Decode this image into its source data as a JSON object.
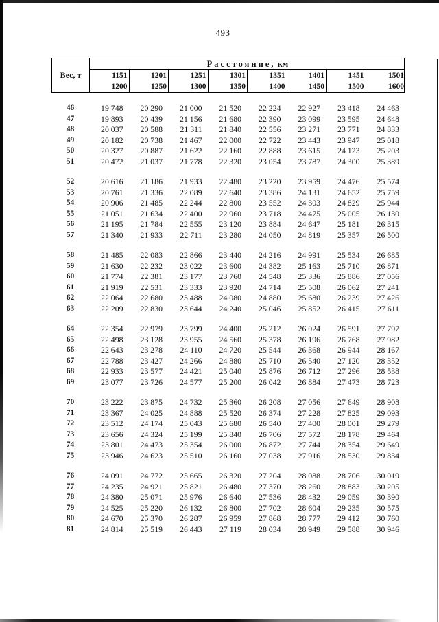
{
  "page_number": "493",
  "table": {
    "distance_title": "Расстояние,",
    "distance_unit": "км",
    "weight_header": "Вес, т",
    "columns": [
      {
        "from": "1151",
        "to": "1200"
      },
      {
        "from": "1201",
        "to": "1250"
      },
      {
        "from": "1251",
        "to": "1300"
      },
      {
        "from": "1301",
        "to": "1350"
      },
      {
        "from": "1351",
        "to": "1400"
      },
      {
        "from": "1401",
        "to": "1450"
      },
      {
        "from": "1451",
        "to": "1500"
      },
      {
        "from": "1501",
        "to": "1600"
      }
    ],
    "groups": [
      [
        {
          "weight": "46",
          "values": [
            "19 748",
            "20 290",
            "21 000",
            "21 520",
            "22 224",
            "22 927",
            "23 418",
            "24 463"
          ]
        },
        {
          "weight": "47",
          "values": [
            "19 893",
            "20 439",
            "21 156",
            "21 680",
            "22 390",
            "23 099",
            "23 595",
            "24 648"
          ]
        },
        {
          "weight": "48",
          "values": [
            "20 037",
            "20 588",
            "21 311",
            "21 840",
            "22 556",
            "23 271",
            "23 771",
            "24 833"
          ]
        },
        {
          "weight": "49",
          "values": [
            "20 182",
            "20 738",
            "21 467",
            "22 000",
            "22 722",
            "23 443",
            "23 947",
            "25 018"
          ]
        },
        {
          "weight": "50",
          "values": [
            "20 327",
            "20 887",
            "21 622",
            "22 160",
            "22 888",
            "23 615",
            "24 123",
            "25 203"
          ]
        },
        {
          "weight": "51",
          "values": [
            "20 472",
            "21 037",
            "21 778",
            "22 320",
            "23 054",
            "23 787",
            "24 300",
            "25 389"
          ]
        }
      ],
      [
        {
          "weight": "52",
          "values": [
            "20 616",
            "21 186",
            "21 933",
            "22 480",
            "23 220",
            "23 959",
            "24 476",
            "25 574"
          ]
        },
        {
          "weight": "53",
          "values": [
            "20 761",
            "21 336",
            "22 089",
            "22 640",
            "23 386",
            "24 131",
            "24 652",
            "25 759"
          ]
        },
        {
          "weight": "54",
          "values": [
            "20 906",
            "21 485",
            "22 244",
            "22 800",
            "23 552",
            "24 303",
            "24 829",
            "25 944"
          ]
        },
        {
          "weight": "55",
          "values": [
            "21 051",
            "21 634",
            "22 400",
            "22 960",
            "23 718",
            "24 475",
            "25 005",
            "26 130"
          ]
        },
        {
          "weight": "56",
          "values": [
            "21 195",
            "21 784",
            "22 555",
            "23 120",
            "23 884",
            "24 647",
            "25 181",
            "26 315"
          ]
        },
        {
          "weight": "57",
          "values": [
            "21 340",
            "21 933",
            "22 711",
            "23 280",
            "24 050",
            "24 819",
            "25 357",
            "26 500"
          ]
        }
      ],
      [
        {
          "weight": "58",
          "values": [
            "21 485",
            "22 083",
            "22 866",
            "23 440",
            "24 216",
            "24 991",
            "25 534",
            "26 685"
          ]
        },
        {
          "weight": "59",
          "values": [
            "21 630",
            "22 232",
            "23 022",
            "23 600",
            "24 382",
            "25 163",
            "25 710",
            "26 871"
          ]
        },
        {
          "weight": "60",
          "values": [
            "21 774",
            "22 381",
            "23 177",
            "23 760",
            "24 548",
            "25 336",
            "25 886",
            "27 056"
          ]
        },
        {
          "weight": "61",
          "values": [
            "21 919",
            "22 531",
            "23 333",
            "23 920",
            "24 714",
            "25 508",
            "26 062",
            "27 241"
          ]
        },
        {
          "weight": "62",
          "values": [
            "22 064",
            "22 680",
            "23 488",
            "24 080",
            "24 880",
            "25 680",
            "26 239",
            "27 426"
          ]
        },
        {
          "weight": "63",
          "values": [
            "22 209",
            "22 830",
            "23 644",
            "24 240",
            "25 046",
            "25 852",
            "26 415",
            "27 611"
          ]
        }
      ],
      [
        {
          "weight": "64",
          "values": [
            "22 354",
            "22 979",
            "23 799",
            "24 400",
            "25 212",
            "26 024",
            "26 591",
            "27 797"
          ]
        },
        {
          "weight": "65",
          "values": [
            "22 498",
            "23 128",
            "23 955",
            "24 560",
            "25 378",
            "26 196",
            "26 768",
            "27 982"
          ]
        },
        {
          "weight": "66",
          "values": [
            "22 643",
            "23 278",
            "24 110",
            "24 720",
            "25 544",
            "26 368",
            "26 944",
            "28 167"
          ]
        },
        {
          "weight": "67",
          "values": [
            "22 788",
            "23 427",
            "24 266",
            "24 880",
            "25 710",
            "26 540",
            "27 120",
            "28 352"
          ]
        },
        {
          "weight": "68",
          "values": [
            "22 933",
            "23 577",
            "24 421",
            "25 040",
            "25 876",
            "26 712",
            "27 296",
            "28 538"
          ]
        },
        {
          "weight": "69",
          "values": [
            "23 077",
            "23 726",
            "24 577",
            "25 200",
            "26 042",
            "26 884",
            "27 473",
            "28 723"
          ]
        }
      ],
      [
        {
          "weight": "70",
          "values": [
            "23 222",
            "23 875",
            "24 732",
            "25 360",
            "26 208",
            "27 056",
            "27 649",
            "28 908"
          ]
        },
        {
          "weight": "71",
          "values": [
            "23 367",
            "24 025",
            "24 888",
            "25 520",
            "26 374",
            "27 228",
            "27 825",
            "29 093"
          ]
        },
        {
          "weight": "72",
          "values": [
            "23 512",
            "24 174",
            "25 043",
            "25 680",
            "26 540",
            "27 400",
            "28 001",
            "29 279"
          ]
        },
        {
          "weight": "73",
          "values": [
            "23 656",
            "24 324",
            "25 199",
            "25 840",
            "26 706",
            "27 572",
            "28 178",
            "29 464"
          ]
        },
        {
          "weight": "74",
          "values": [
            "23 801",
            "24 473",
            "25 354",
            "26 000",
            "26 872",
            "27 744",
            "28 354",
            "29 649"
          ]
        },
        {
          "weight": "75",
          "values": [
            "23 946",
            "24 623",
            "25 510",
            "26 160",
            "27 038",
            "27 916",
            "28 530",
            "29 834"
          ]
        }
      ],
      [
        {
          "weight": "76",
          "values": [
            "24 091",
            "24 772",
            "25 665",
            "26 320",
            "27 204",
            "28 088",
            "28 706",
            "30 019"
          ]
        },
        {
          "weight": "77",
          "values": [
            "24 235",
            "24 921",
            "25 821",
            "26 480",
            "27 370",
            "28 260",
            "28 883",
            "30 205"
          ]
        },
        {
          "weight": "78",
          "values": [
            "24 380",
            "25 071",
            "25 976",
            "26 640",
            "27 536",
            "28 432",
            "29 059",
            "30 390"
          ]
        },
        {
          "weight": "79",
          "values": [
            "24 525",
            "25 220",
            "26 132",
            "26 800",
            "27 702",
            "28 604",
            "29 235",
            "30 575"
          ]
        },
        {
          "weight": "80",
          "values": [
            "24 670",
            "25 370",
            "26 287",
            "26 959",
            "27 868",
            "28 777",
            "29 412",
            "30 760"
          ]
        },
        {
          "weight": "81",
          "values": [
            "24 814",
            "25 519",
            "26 443",
            "27 119",
            "28 034",
            "28 949",
            "29 588",
            "30 946"
          ]
        }
      ]
    ]
  }
}
